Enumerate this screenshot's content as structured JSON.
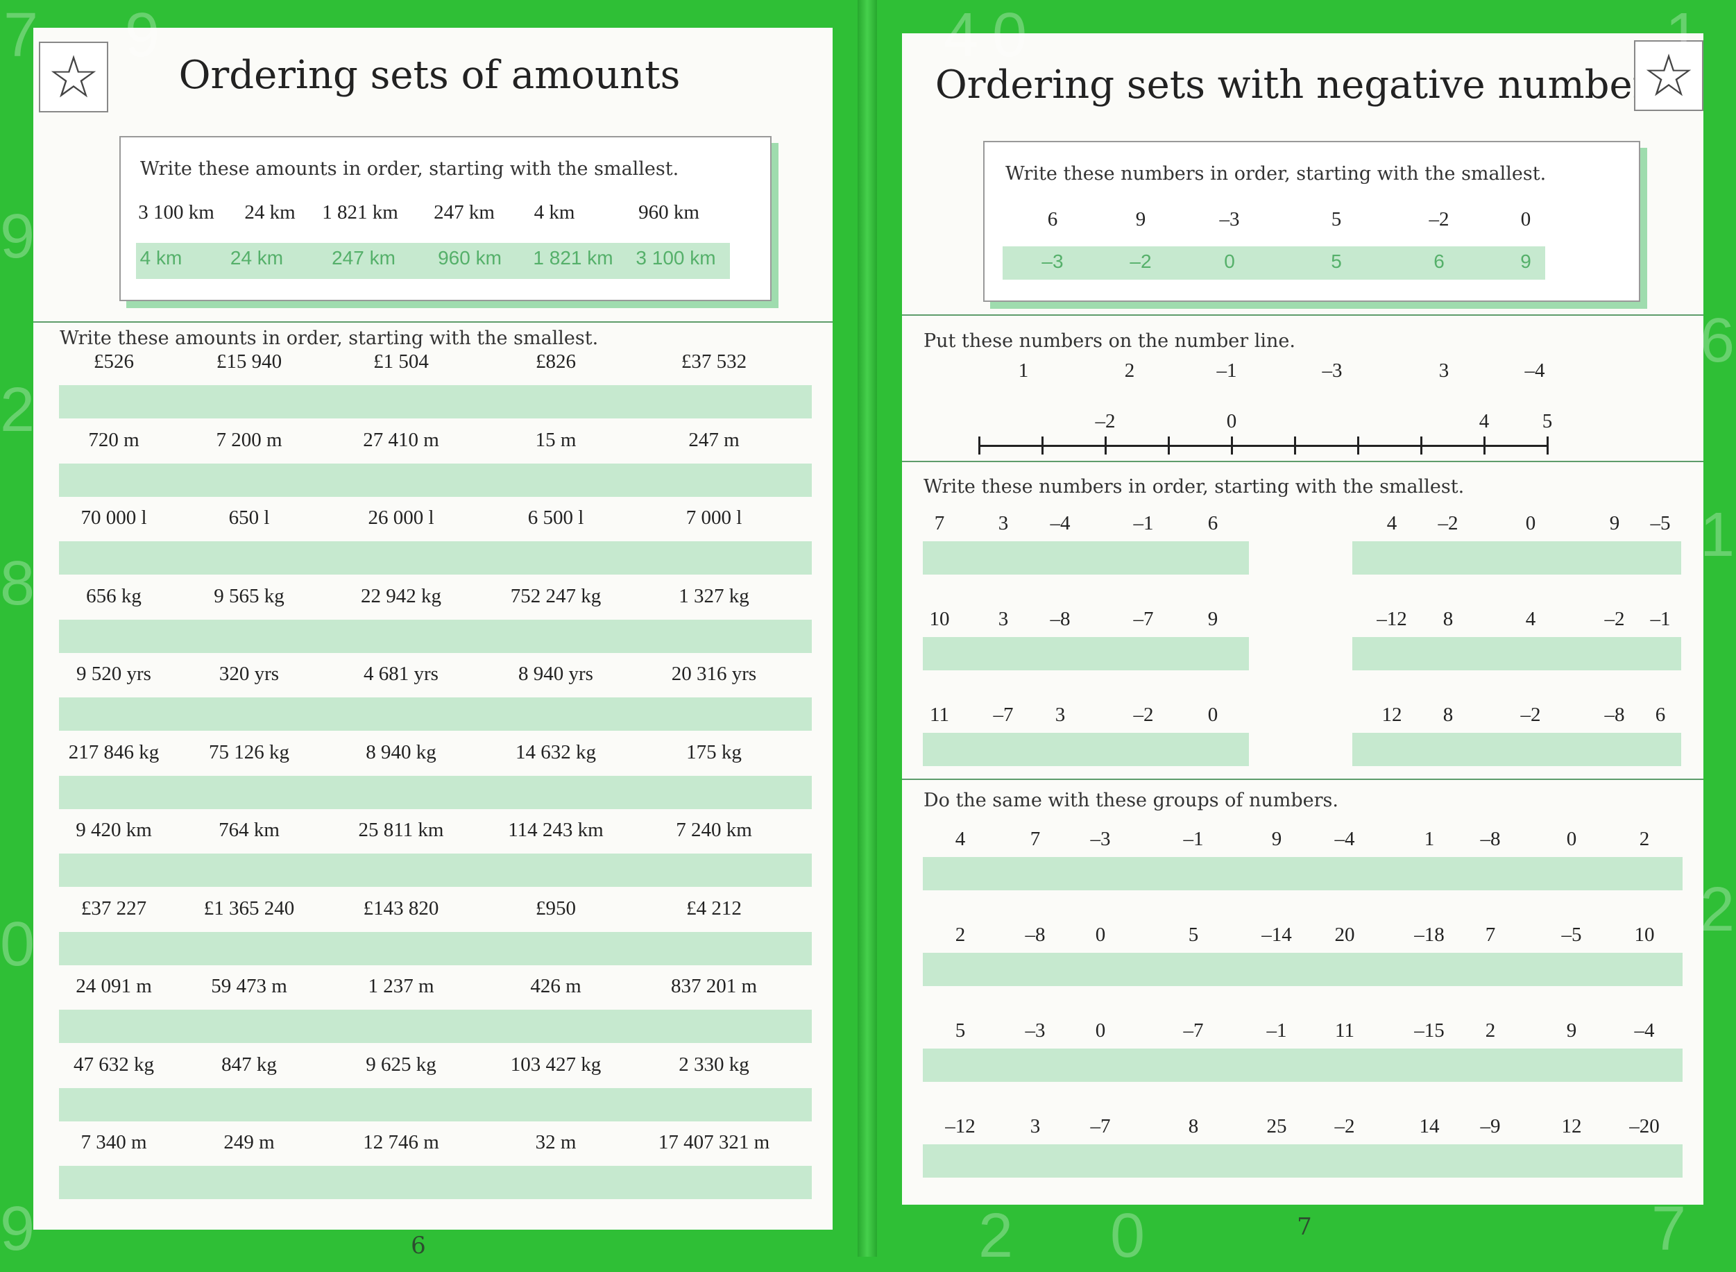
{
  "left_page": {
    "title": "Ordering sets of amounts",
    "page_number": "6",
    "example": {
      "instruction": "Write these amounts in order, starting with the smallest.",
      "values": [
        "3 100 km",
        "24 km",
        "1 821 km",
        "247 km",
        "4 km",
        "960 km"
      ],
      "answers": [
        "4 km",
        "24 km",
        "247 km",
        "960 km",
        "1 821 km",
        "3 100 km"
      ]
    },
    "exercise": {
      "instruction": "Write these amounts in order, starting with the smallest.",
      "rows": [
        [
          "£526",
          "£15 940",
          "£1 504",
          "£826",
          "£37 532"
        ],
        [
          "720 m",
          "7 200 m",
          "27 410 m",
          "15 m",
          "247 m"
        ],
        [
          "70 000 l",
          "650 l",
          "26 000 l",
          "6 500 l",
          "7 000 l"
        ],
        [
          "656 kg",
          "9 565 kg",
          "22 942 kg",
          "752 247 kg",
          "1 327 kg"
        ],
        [
          "9 520 yrs",
          "320 yrs",
          "4 681 yrs",
          "8 940 yrs",
          "20 316 yrs"
        ],
        [
          "217 846 kg",
          "75 126 kg",
          "8 940 kg",
          "14 632 kg",
          "175 kg"
        ],
        [
          "9 420 km",
          "764 km",
          "25 811 km",
          "114 243 km",
          "7 240 km"
        ],
        [
          "£37 227",
          "£1 365 240",
          "£143 820",
          "£950",
          "£4 212"
        ],
        [
          "24 091 m",
          "59 473 m",
          "1 237 m",
          "426 m",
          "837 201 m"
        ],
        [
          "47 632 kg",
          "847 kg",
          "9 625 kg",
          "103 427 kg",
          "2 330 kg"
        ],
        [
          "7 340 m",
          "249 m",
          "12 746 m",
          "32 m",
          "17 407 321 m"
        ]
      ]
    }
  },
  "right_page": {
    "title": "Ordering sets with negative numbers",
    "page_number": "7",
    "example": {
      "instruction": "Write these numbers in order, starting with the smallest.",
      "values": [
        "6",
        "9",
        "–3",
        "5",
        "–2",
        "0"
      ],
      "answers": [
        "–3",
        "–2",
        "0",
        "5",
        "6",
        "9"
      ]
    },
    "number_line": {
      "instruction": "Put these numbers on the number line.",
      "numbers": [
        "1",
        "2",
        "–1",
        "–3",
        "3",
        "–4"
      ],
      "range": [
        -4,
        5
      ],
      "labels": [
        {
          "value": -2,
          "text": "–2"
        },
        {
          "value": 0,
          "text": "0"
        },
        {
          "value": 4,
          "text": "4"
        },
        {
          "value": 5,
          "text": "5"
        }
      ]
    },
    "five_groups": {
      "instruction": "Write these numbers in order, starting with the smallest.",
      "left": [
        [
          "7",
          "3",
          "–4",
          "–1",
          "6"
        ],
        [
          "10",
          "3",
          "–8",
          "–7",
          "9"
        ],
        [
          "11",
          "–7",
          "3",
          "–2",
          "0"
        ]
      ],
      "right": [
        [
          "4",
          "–2",
          "0",
          "9",
          "–5"
        ],
        [
          "–12",
          "8",
          "4",
          "–2",
          "–1"
        ],
        [
          "12",
          "8",
          "–2",
          "–8",
          "6"
        ]
      ]
    },
    "ten_groups": {
      "instruction": "Do the same with these groups of numbers.",
      "rows": [
        [
          "4",
          "7",
          "–3",
          "–1",
          "9",
          "–4",
          "1",
          "–8",
          "0",
          "2"
        ],
        [
          "2",
          "–8",
          "0",
          "5",
          "–14",
          "20",
          "–18",
          "7",
          "–5",
          "10"
        ],
        [
          "5",
          "–3",
          "0",
          "–7",
          "–1",
          "11",
          "–15",
          "2",
          "9",
          "–4"
        ],
        [
          "–12",
          "3",
          "–7",
          "8",
          "25",
          "–2",
          "14",
          "–9",
          "12",
          "–20"
        ]
      ]
    }
  },
  "colors": {
    "background": "#2fbf36",
    "answer_bar": "#c6e9cf",
    "answer_text": "#55b06a"
  }
}
